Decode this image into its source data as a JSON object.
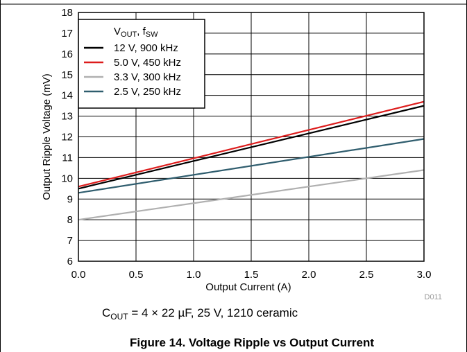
{
  "chart_data": {
    "type": "line",
    "xlabel": "Output Current (A)",
    "ylabel": "Output Ripple Voltage (mV)",
    "xlim": [
      0,
      3
    ],
    "ylim": [
      6,
      18
    ],
    "x_ticks": [
      "0.0",
      "0.5",
      "1.0",
      "1.5",
      "2.0",
      "2.5",
      "3.0"
    ],
    "y_ticks": [
      "6",
      "7",
      "8",
      "9",
      "10",
      "11",
      "12",
      "13",
      "14",
      "15",
      "16",
      "17",
      "18"
    ],
    "grid": true,
    "legend_position": "top-left",
    "legend_title": {
      "v": "V",
      "v_sub": "OUT",
      "sep": ", f",
      "f_sub": "SW"
    },
    "series": [
      {
        "name": "12 V, 900 kHz",
        "color": "#000000",
        "x": [
          0,
          3
        ],
        "y": [
          9.5,
          13.5
        ]
      },
      {
        "name": "5.0 V, 450 kHz",
        "color": "#dd1c1c",
        "x": [
          0,
          3
        ],
        "y": [
          9.6,
          13.7
        ]
      },
      {
        "name": "3.3 V, 300 kHz",
        "color": "#b0b0b0",
        "x": [
          0,
          3
        ],
        "y": [
          8.0,
          10.4
        ]
      },
      {
        "name": "2.5 V, 250 kHz",
        "color": "#2f5d6e",
        "x": [
          0,
          3
        ],
        "y": [
          9.3,
          11.9
        ]
      }
    ],
    "code_tag": "D011"
  },
  "caption": {
    "c": "C",
    "sub": "OUT",
    "rest": " = 4 × 22 µF, 25 V, 1210 ceramic"
  },
  "figure_title": "Figure 14. Voltage Ripple vs Output Current"
}
